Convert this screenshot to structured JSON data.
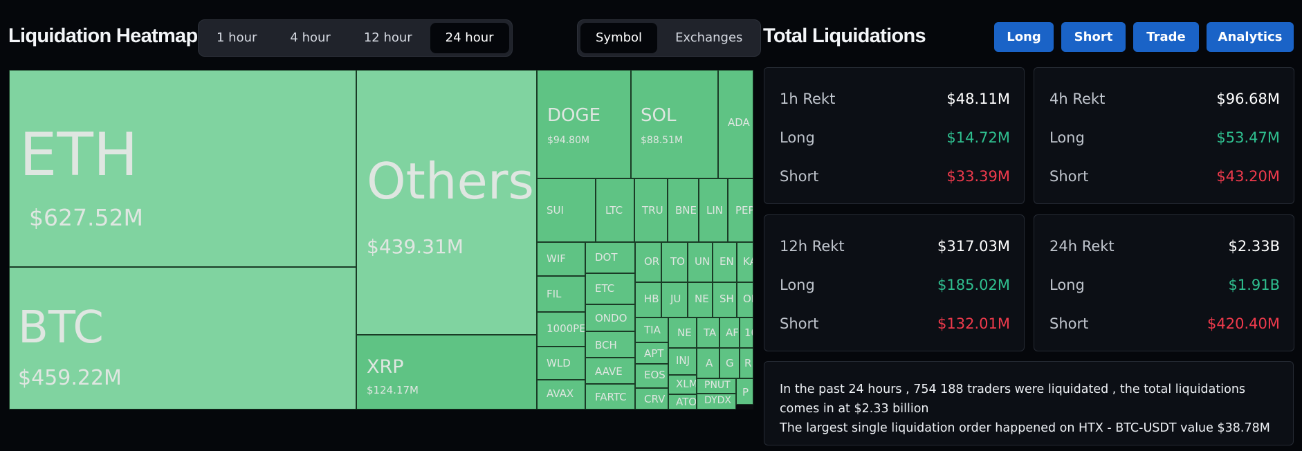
{
  "heatmap": {
    "title": "Liquidation Heatmap",
    "time_options": [
      "1 hour",
      "4 hour",
      "12 hour",
      "24 hour"
    ],
    "time_selected": "24 hour",
    "mode_options": [
      "Symbol",
      "Exchanges"
    ],
    "mode_selected": "Symbol",
    "tiles": [
      {
        "name": "ETH",
        "value": "$627.52M"
      },
      {
        "name": "BTC",
        "value": "$459.22M"
      },
      {
        "name": "Others",
        "value": "$439.31M"
      },
      {
        "name": "XRP",
        "value": "$124.17M"
      },
      {
        "name": "DOGE",
        "value": "$94.80M"
      },
      {
        "name": "SOL",
        "value": "$88.51M"
      },
      {
        "name": "ADA",
        "value": ""
      },
      {
        "name": "SUI"
      },
      {
        "name": "LTC"
      },
      {
        "name": "TRU"
      },
      {
        "name": "BNE"
      },
      {
        "name": "LIN"
      },
      {
        "name": "PEP"
      },
      {
        "name": "WIF"
      },
      {
        "name": "DOT"
      },
      {
        "name": "FIL"
      },
      {
        "name": "ETC"
      },
      {
        "name": "1000PE"
      },
      {
        "name": "ONDO"
      },
      {
        "name": "WLD"
      },
      {
        "name": "BCH"
      },
      {
        "name": "AAVE"
      },
      {
        "name": "AVAX"
      },
      {
        "name": "FARTC"
      },
      {
        "name": "OR"
      },
      {
        "name": "TO"
      },
      {
        "name": "UN"
      },
      {
        "name": "EN"
      },
      {
        "name": "KA"
      },
      {
        "name": "HB"
      },
      {
        "name": "JU"
      },
      {
        "name": "NE"
      },
      {
        "name": "SH"
      },
      {
        "name": "OF"
      },
      {
        "name": "TIA"
      },
      {
        "name": "NE"
      },
      {
        "name": "TA"
      },
      {
        "name": "AF"
      },
      {
        "name": "10"
      },
      {
        "name": "APT"
      },
      {
        "name": "INJ"
      },
      {
        "name": "A"
      },
      {
        "name": "G"
      },
      {
        "name": "R"
      },
      {
        "name": "EOS"
      },
      {
        "name": "XLM"
      },
      {
        "name": "PNUT"
      },
      {
        "name": "P"
      },
      {
        "name": "CRV"
      },
      {
        "name": "ATO"
      },
      {
        "name": "DYDX"
      }
    ]
  },
  "totals": {
    "title": "Total Liquidations",
    "buttons": [
      "Long",
      "Short",
      "Trade",
      "Analytics"
    ],
    "cards": [
      {
        "title": "1h Rekt",
        "total": "$48.11M",
        "long_label": "Long",
        "long": "$14.72M",
        "short_label": "Short",
        "short": "$33.39M"
      },
      {
        "title": "4h Rekt",
        "total": "$96.68M",
        "long_label": "Long",
        "long": "$53.47M",
        "short_label": "Short",
        "short": "$43.20M"
      },
      {
        "title": "12h Rekt",
        "total": "$317.03M",
        "long_label": "Long",
        "long": "$185.02M",
        "short_label": "Short",
        "short": "$132.01M"
      },
      {
        "title": "24h Rekt",
        "total": "$2.33B",
        "long_label": "Long",
        "long": "$1.91B",
        "short_label": "Short",
        "short": "$420.40M"
      }
    ],
    "summary_line1": "In the past 24 hours , 754 188 traders were liquidated , the total liquidations comes in at $2.33 billion",
    "summary_line2": "The largest single liquidation order happened on HTX - BTC-USDT value $38.78M"
  },
  "colors": {
    "long": "#2fbf8f",
    "short": "#ef3a4c",
    "accent": "#1a63c7",
    "tile_light": "#80d3a0",
    "tile_dark": "#5fc384"
  }
}
